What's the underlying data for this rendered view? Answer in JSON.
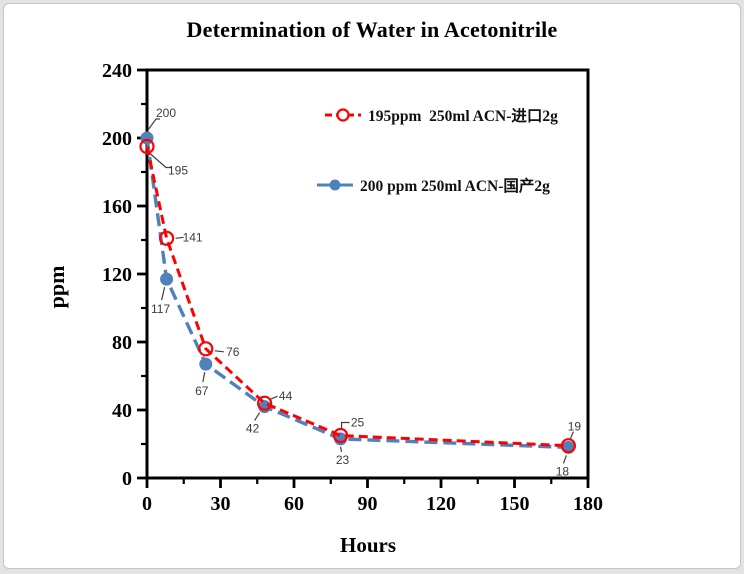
{
  "window": {
    "page_background": "#e3e3e3",
    "canvas_background": "#ffffff",
    "canvas_border_color": "#c6c6c6"
  },
  "chart_data": {
    "type": "line",
    "title": "Determination of Water in Acetonitrile",
    "xlabel": "Hours",
    "ylabel": "ppm",
    "xlim": [
      0,
      180
    ],
    "ylim": [
      0,
      240
    ],
    "xticks": [
      0,
      30,
      60,
      90,
      120,
      150,
      180
    ],
    "yticks": [
      0,
      40,
      80,
      120,
      160,
      200,
      240
    ],
    "x_minor_step": 15,
    "y_minor_step": 20,
    "grid": false,
    "legend_position": "inside-top-center",
    "axis_color": "#000000",
    "data_label_color": "#3d3d3d",
    "series": [
      {
        "name": "195ppm  250ml ACN-进口2g",
        "color": "#FF0000",
        "marker": "open-circle",
        "line_style": "dashed",
        "dash": "9 5",
        "width": 3,
        "points": [
          {
            "x": 0,
            "y": 195,
            "label": "195",
            "label_offset": [
              31,
              24
            ],
            "leader": [
              [
                3,
                7
              ],
              [
                19,
                21
              ],
              [
                24,
                21
              ]
            ]
          },
          {
            "x": 8,
            "y": 141,
            "label": "141",
            "label_offset": [
              26,
              -1
            ],
            "leader": [
              [
                9,
                0
              ],
              [
                17,
                -1
              ]
            ]
          },
          {
            "x": 24,
            "y": 76,
            "label": "76",
            "label_offset": [
              27,
              3
            ],
            "leader": [
              [
                9,
                2
              ],
              [
                18,
                3
              ]
            ]
          },
          {
            "x": 48,
            "y": 44,
            "label": "44",
            "label_offset": [
              21,
              -7
            ],
            "leader": [
              [
                6,
                -4
              ],
              [
                13,
                -7
              ]
            ]
          },
          {
            "x": 79,
            "y": 25,
            "label": "25",
            "label_offset": [
              17,
              -13
            ],
            "leader": [
              [
                1,
                -7
              ],
              [
                1,
                -13
              ],
              [
                9,
                -13
              ]
            ]
          },
          {
            "x": 172,
            "y": 19,
            "label": "19",
            "label_offset": [
              6,
              -19
            ],
            "leader": [
              [
                2,
                -7
              ],
              [
                5,
                -14
              ]
            ]
          }
        ]
      },
      {
        "name": "200 ppm 250ml ACN-国产2g",
        "color": "#4F81BD",
        "marker": "filled-circle",
        "line_style": "dashed",
        "dash": "13 6",
        "width": 3.4,
        "points": [
          {
            "x": 0,
            "y": 200,
            "label": "200",
            "label_offset": [
              19,
              -25
            ],
            "leader": [
              [
                1,
                -8
              ],
              [
                9,
                -19
              ],
              [
                13,
                -19
              ]
            ]
          },
          {
            "x": 8,
            "y": 117,
            "label": "117",
            "label_offset": [
              -6,
              30
            ],
            "leader": [
              [
                -2,
                8
              ],
              [
                -5,
                21
              ]
            ]
          },
          {
            "x": 24,
            "y": 67,
            "label": "67",
            "label_offset": [
              -4,
              27
            ],
            "leader": [
              [
                -1,
                8
              ],
              [
                -3,
                18
              ]
            ]
          },
          {
            "x": 48,
            "y": 42,
            "label": "42",
            "label_offset": [
              -12,
              22
            ],
            "leader": [
              [
                -5,
                6
              ],
              [
                -10,
                14
              ]
            ]
          },
          {
            "x": 79,
            "y": 23,
            "label": "23",
            "label_offset": [
              2,
              21
            ],
            "leader": [
              [
                0,
                8
              ],
              [
                1,
                13
              ]
            ]
          },
          {
            "x": 172,
            "y": 18,
            "label": "18",
            "label_offset": [
              -6,
              24
            ],
            "leader": [
              [
                -2,
                8
              ],
              [
                -5,
                16
              ]
            ]
          }
        ]
      }
    ]
  }
}
